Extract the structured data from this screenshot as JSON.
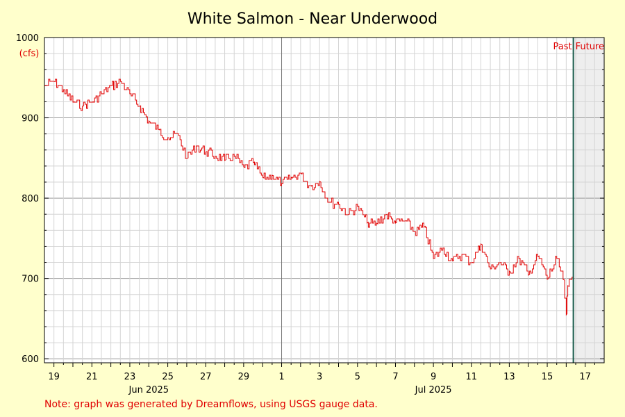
{
  "chart_data": {
    "type": "line",
    "title": "White Salmon - Near Underwood",
    "ylabel_unit": "(cfs)",
    "ylim": [
      595,
      1000
    ],
    "y_ticks": [
      600,
      700,
      800,
      900,
      1000
    ],
    "x_range": [
      "2025-06-18T12:00",
      "2025-07-18T00:00"
    ],
    "x_tick_labels": [
      "19",
      "21",
      "23",
      "25",
      "27",
      "29",
      "1",
      "3",
      "5",
      "7",
      "9",
      "11",
      "13",
      "15",
      "17"
    ],
    "month_labels": [
      {
        "label": "Jun 2025",
        "date": "2025-06-24"
      },
      {
        "label": "Jul 2025",
        "date": "2025-07-09"
      }
    ],
    "now_date": "2025-07-16T09:00",
    "region_labels": {
      "past": "Past",
      "future": "Future"
    },
    "series": [
      {
        "color": "#e00000",
        "points": [
          [
            "2025-06-18T12:00",
            940
          ],
          [
            "2025-06-19T00:00",
            945
          ],
          [
            "2025-06-19T12:00",
            935
          ],
          [
            "2025-06-20T00:00",
            920
          ],
          [
            "2025-06-20T12:00",
            915
          ],
          [
            "2025-06-21T00:00",
            920
          ],
          [
            "2025-06-21T12:00",
            930
          ],
          [
            "2025-06-22T00:00",
            940
          ],
          [
            "2025-06-22T12:00",
            945
          ],
          [
            "2025-06-23T00:00",
            930
          ],
          [
            "2025-06-23T12:00",
            915
          ],
          [
            "2025-06-24T00:00",
            895
          ],
          [
            "2025-06-24T12:00",
            885
          ],
          [
            "2025-06-25T00:00",
            875
          ],
          [
            "2025-06-25T12:00",
            880
          ],
          [
            "2025-06-26T00:00",
            850
          ],
          [
            "2025-06-26T12:00",
            865
          ],
          [
            "2025-06-27T00:00",
            858
          ],
          [
            "2025-06-27T12:00",
            852
          ],
          [
            "2025-06-28T00:00",
            848
          ],
          [
            "2025-06-28T12:00",
            852
          ],
          [
            "2025-06-29T00:00",
            838
          ],
          [
            "2025-06-29T12:00",
            845
          ],
          [
            "2025-06-30T00:00",
            825
          ],
          [
            "2025-06-30T12:00",
            828
          ],
          [
            "2025-07-01T00:00",
            818
          ],
          [
            "2025-07-01T12:00",
            825
          ],
          [
            "2025-07-02T00:00",
            830
          ],
          [
            "2025-07-02T12:00",
            815
          ],
          [
            "2025-07-03T00:00",
            820
          ],
          [
            "2025-07-03T12:00",
            795
          ],
          [
            "2025-07-04T00:00",
            792
          ],
          [
            "2025-07-04T12:00",
            780
          ],
          [
            "2025-07-05T00:00",
            790
          ],
          [
            "2025-07-05T12:00",
            770
          ],
          [
            "2025-07-06T00:00",
            768
          ],
          [
            "2025-07-06T12:00",
            780
          ],
          [
            "2025-07-07T00:00",
            770
          ],
          [
            "2025-07-07T12:00",
            772
          ],
          [
            "2025-07-08T00:00",
            758
          ],
          [
            "2025-07-08T12:00",
            765
          ],
          [
            "2025-07-09T00:00",
            725
          ],
          [
            "2025-07-09T12:00",
            738
          ],
          [
            "2025-07-10T00:00",
            722
          ],
          [
            "2025-07-10T12:00",
            730
          ],
          [
            "2025-07-11T00:00",
            720
          ],
          [
            "2025-07-11T12:00",
            742
          ],
          [
            "2025-07-12T00:00",
            712
          ],
          [
            "2025-07-12T12:00",
            720
          ],
          [
            "2025-07-13T00:00",
            708
          ],
          [
            "2025-07-13T12:00",
            725
          ],
          [
            "2025-07-14T00:00",
            705
          ],
          [
            "2025-07-14T12:00",
            728
          ],
          [
            "2025-07-15T00:00",
            700
          ],
          [
            "2025-07-15T12:00",
            725
          ],
          [
            "2025-07-15T20:00",
            698
          ],
          [
            "2025-07-16T00:00",
            656
          ],
          [
            "2025-07-16T02:00",
            690
          ],
          [
            "2025-07-16T09:00",
            705
          ]
        ]
      }
    ],
    "grid": true,
    "future_shading": "#eeeeee"
  },
  "note": "Note: graph was generated by Dreamflows, using USGS gauge data."
}
